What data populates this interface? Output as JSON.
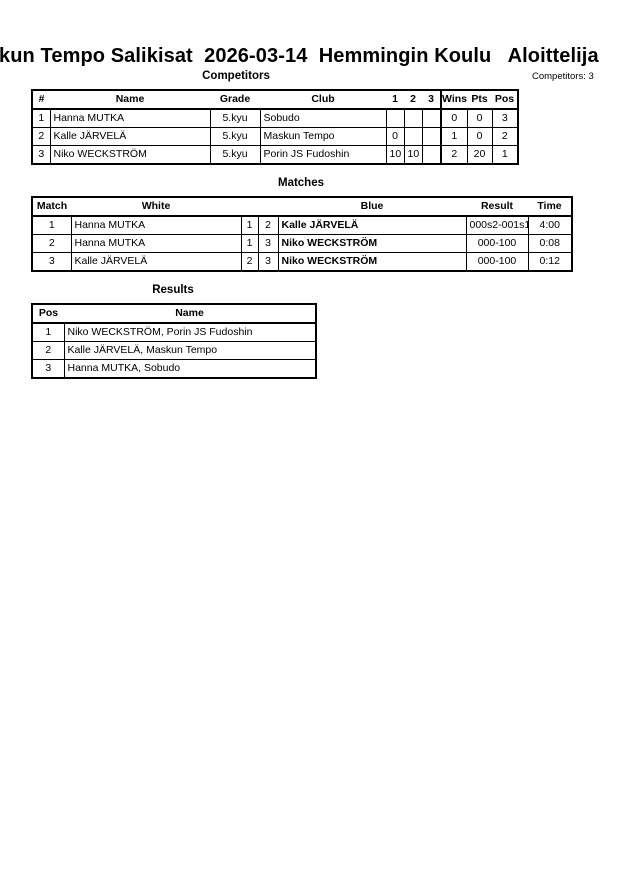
{
  "title": "kun Tempo Salikisat  2026-03-14  Hemmingin Koulu   Aloittelija",
  "competitors": {
    "heading": "Competitors",
    "count_label": "Competitors: 3",
    "columns": [
      "#",
      "Name",
      "Grade",
      "Club",
      "1",
      "2",
      "3",
      "Wins",
      "Pts",
      "Pos"
    ],
    "rows": [
      [
        "1",
        "Hanna MUTKA",
        "5.kyu",
        "Sobudo",
        "",
        "",
        "",
        "0",
        "0",
        "3"
      ],
      [
        "2",
        "Kalle JÄRVELÄ",
        "5.kyu",
        "Maskun Tempo",
        "0",
        "",
        "",
        "1",
        "0",
        "2"
      ],
      [
        "3",
        "Niko WECKSTRÖM",
        "5.kyu",
        "Porin JS Fudoshin",
        "10",
        "10",
        "",
        "2",
        "20",
        "1"
      ]
    ]
  },
  "matches": {
    "heading": "Matches",
    "columns": [
      "Match",
      "White",
      "Blue",
      "Result",
      "Time"
    ],
    "rows": [
      [
        "1",
        "Hanna MUTKA",
        "1",
        "2",
        "Kalle JÄRVELÄ",
        "000s2-001s1",
        "4:00"
      ],
      [
        "2",
        "Hanna MUTKA",
        "1",
        "3",
        "Niko WECKSTRÖM",
        "000-100",
        "0:08"
      ],
      [
        "3",
        "Kalle JÄRVELÄ",
        "2",
        "3",
        "Niko WECKSTRÖM",
        "000-100",
        "0:12"
      ]
    ]
  },
  "results": {
    "heading": "Results",
    "columns": [
      "Pos",
      "Name"
    ],
    "rows": [
      [
        "1",
        "Niko WECKSTRÖM, Porin JS Fudoshin"
      ],
      [
        "2",
        "Kalle JÄRVELÄ, Maskun Tempo"
      ],
      [
        "3",
        "Hanna MUTKA, Sobudo"
      ]
    ]
  }
}
